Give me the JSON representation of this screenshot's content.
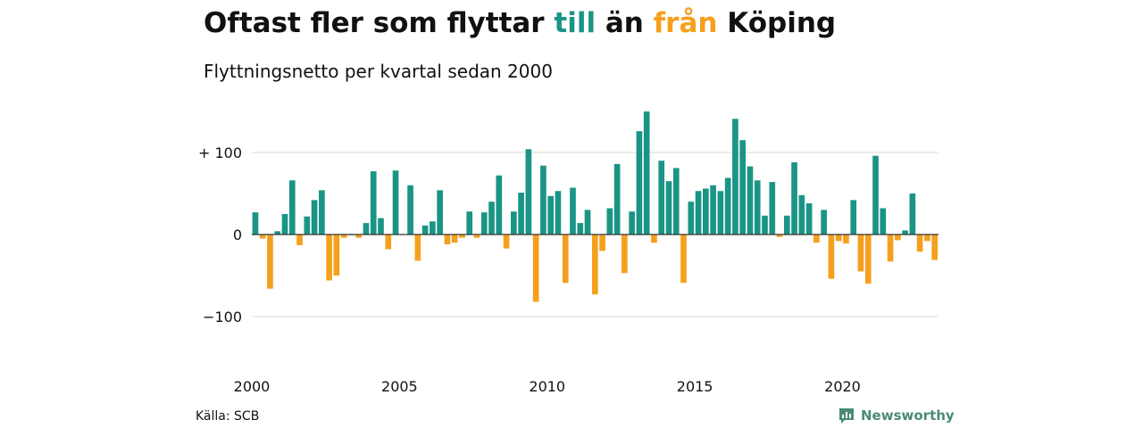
{
  "title": {
    "parts": [
      {
        "text": "Oftast fler som flyttar ",
        "color": "#111111"
      },
      {
        "text": "till",
        "color": "#1a9585"
      },
      {
        "text": " än ",
        "color": "#111111"
      },
      {
        "text": "från",
        "color": "#f5a01d"
      },
      {
        "text": " Köping",
        "color": "#111111"
      }
    ]
  },
  "subtitle": "Flyttningsnetto per kvartal sedan 2000",
  "source": "Källa: SCB",
  "brand": {
    "name": "Newsworthy",
    "icon": "newsworthy-logo-icon",
    "color": "#4a8a78"
  },
  "chart_data": {
    "type": "bar",
    "title": "Oftast fler som flyttar till än från Köping",
    "subtitle": "Flyttningsnetto per kvartal sedan 2000",
    "ylim": [
      -140,
      160
    ],
    "xlim": [
      2000,
      2023.75
    ],
    "y_ticks": [
      {
        "value": 100,
        "label": "+ 100"
      },
      {
        "value": 0,
        "label": "0"
      },
      {
        "value": -100,
        "label": "−100"
      }
    ],
    "x_ticks": [
      {
        "value": 2000,
        "label": "2000"
      },
      {
        "value": 2005,
        "label": "2005"
      },
      {
        "value": 2010,
        "label": "2010"
      },
      {
        "value": 2015,
        "label": "2015"
      },
      {
        "value": 2020,
        "label": "2020"
      }
    ],
    "grid": true,
    "colors": {
      "positive": "#1a9585",
      "negative": "#f5a01d",
      "grid": "#d9d9d9",
      "zero_line": "#333333"
    },
    "start_year": 2000,
    "start_quarter": 1,
    "values": [
      27,
      -5,
      -66,
      4,
      25,
      66,
      -13,
      22,
      42,
      54,
      -56,
      -50,
      -4,
      -1,
      -4,
      14,
      77,
      20,
      -18,
      78,
      0,
      60,
      -32,
      11,
      16,
      54,
      -12,
      -10,
      -4,
      28,
      -4,
      27,
      40,
      72,
      -17,
      28,
      51,
      104,
      -82,
      84,
      47,
      53,
      -59,
      57,
      14,
      30,
      -73,
      -20,
      32,
      86,
      -47,
      28,
      126,
      150,
      -10,
      90,
      65,
      81,
      -59,
      40,
      53,
      56,
      60,
      53,
      69,
      141,
      115,
      83,
      66,
      23,
      64,
      -3,
      23,
      88,
      48,
      38,
      -10,
      30,
      -54,
      -8,
      -11,
      42,
      -45,
      -60,
      96,
      32,
      -33,
      -7,
      5,
      50,
      -21,
      -8,
      -31
    ]
  }
}
